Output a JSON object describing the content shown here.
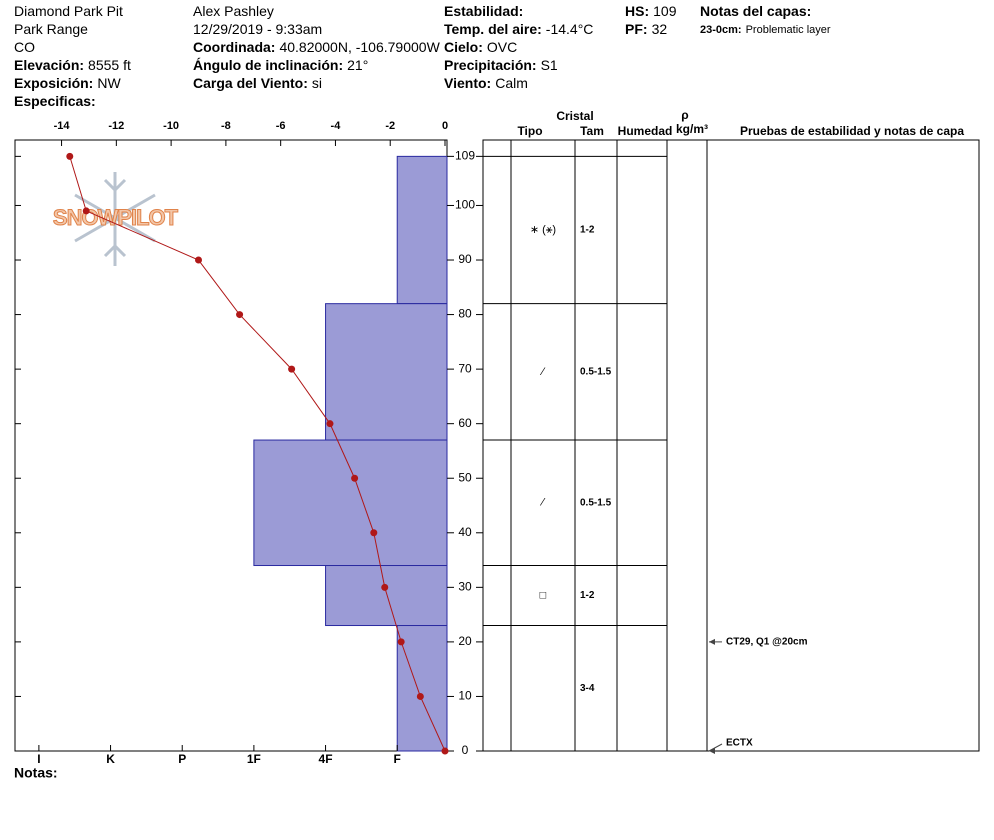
{
  "header": {
    "columns": [
      [
        {
          "text": "Diamond Park Pit"
        },
        {
          "text": "Park Range"
        },
        {
          "text": "CO"
        },
        {
          "label": "Elevación:",
          "value": "8555 ft"
        },
        {
          "label": "Exposición:",
          "value": "NW"
        },
        {
          "label": "Especificas:"
        }
      ],
      [
        {
          "text": "Alex Pashley"
        },
        {
          "text": "12/29/2019 - 9:33am"
        },
        {
          "label": "Coordinada:",
          "value": "40.82000N, -106.79000W"
        },
        {
          "label": "Ángulo de inclinación:",
          "value": "21°"
        },
        {
          "label": "Carga del Viento:",
          "value": "si"
        }
      ],
      [
        {
          "label": "Estabilidad:"
        },
        {
          "label": "Temp. del aire:",
          "value": "-14.4°C"
        },
        {
          "label": "Cielo:",
          "value": "OVC"
        },
        {
          "label": "Precipitación:",
          "value": "S1"
        },
        {
          "label": "Viento:",
          "value": "Calm"
        }
      ],
      [
        {
          "label": "HS:",
          "value": "109"
        },
        {
          "label": "PF:",
          "value": "32"
        }
      ],
      [
        {
          "label": "Notas del capas:"
        },
        {
          "small_label": "23-0cm:",
          "value": "Problematic layer"
        }
      ]
    ]
  },
  "logo": "SNOWPILOT",
  "notes_label": "Notas:",
  "columns": {
    "crystal": "Cristal",
    "type": "Tipo",
    "size": "Tam",
    "moisture": "Humedad",
    "rho": "ρ",
    "density_unit": "kg/m³",
    "tests": "Pruebas de estabilidad y notas de capa"
  },
  "chart_data": {
    "type": "profile",
    "ylim": [
      0,
      112
    ],
    "yticks": [
      0,
      10,
      20,
      30,
      40,
      50,
      60,
      70,
      80,
      90,
      100,
      109
    ],
    "xlim": [
      -15.7,
      0
    ],
    "xticks": [
      -14,
      -12,
      -10,
      -8,
      -6,
      -4,
      -2,
      0
    ],
    "hardness_lim": [
      0,
      18
    ],
    "hardness_ticks": [
      {
        "value": 17,
        "label": "I"
      },
      {
        "value": 14,
        "label": "K"
      },
      {
        "value": 11,
        "label": "P"
      },
      {
        "value": 8,
        "label": "1F"
      },
      {
        "value": 5,
        "label": "4F"
      },
      {
        "value": 2,
        "label": "F"
      }
    ],
    "bar_color": "#9b9bd6",
    "line_color": "#b01818",
    "layers": [
      {
        "top": 109,
        "bottom": 82,
        "hardness": 2,
        "crystal_type": "∗ (⚹)",
        "size": "1-2"
      },
      {
        "top": 82,
        "bottom": 57,
        "hardness": 5,
        "crystal_type": "⁄",
        "size": "0.5-1.5"
      },
      {
        "top": 57,
        "bottom": 34,
        "hardness": 8,
        "crystal_type": "⁄",
        "size": "0.5-1.5"
      },
      {
        "top": 34,
        "bottom": 23,
        "hardness": 5,
        "crystal_type": "□",
        "size": "1-2"
      },
      {
        "top": 23,
        "bottom": 0,
        "hardness": 2,
        "size": "3-4"
      }
    ],
    "temperature": {
      "depths": [
        109,
        99,
        90,
        80,
        70,
        60,
        50,
        40,
        30,
        20,
        10,
        0
      ],
      "values": [
        -13.7,
        -13.1,
        -9.0,
        -7.5,
        -5.6,
        -4.2,
        -3.3,
        -2.6,
        -2.2,
        -1.6,
        -0.9,
        0
      ]
    },
    "tests": [
      {
        "depth": 20,
        "text": "CT29, Q1 @20cm"
      },
      {
        "depth": 0,
        "text": "ECTX"
      }
    ]
  }
}
